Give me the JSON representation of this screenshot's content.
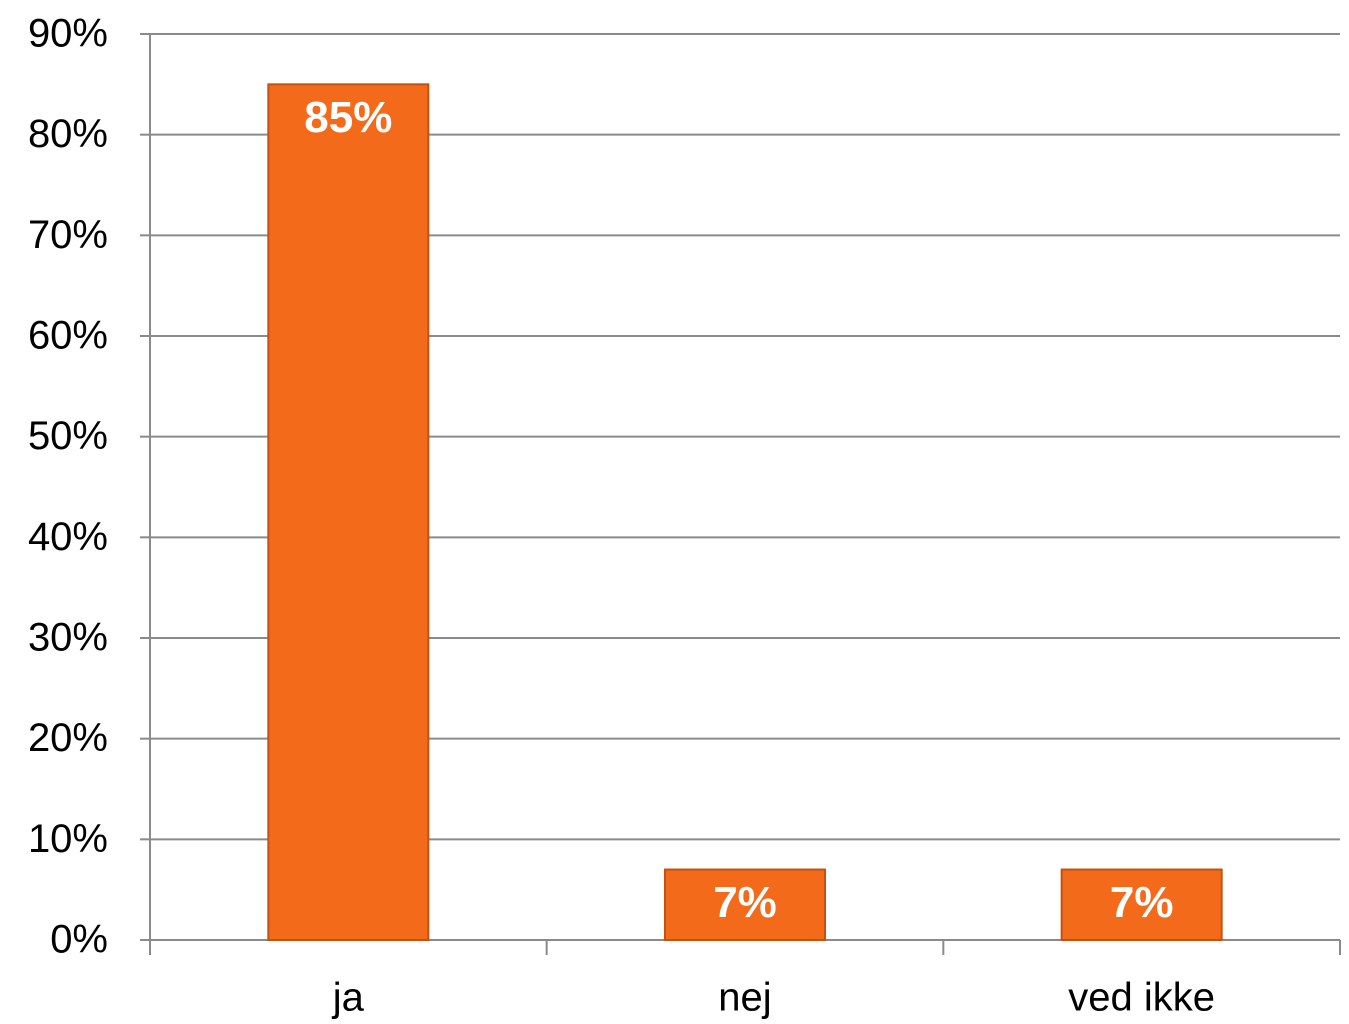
{
  "chart_data": {
    "type": "bar",
    "categories": [
      "ja",
      "nej",
      "ved ikke"
    ],
    "values": [
      85,
      7,
      7
    ],
    "value_labels": [
      "85%",
      "7%",
      "7%"
    ],
    "color": "#f46a1b",
    "ylim": [
      0,
      90
    ],
    "yticks": [
      {
        "value": 0,
        "label": "0%"
      },
      {
        "value": 10,
        "label": "10%"
      },
      {
        "value": 20,
        "label": "20%"
      },
      {
        "value": 30,
        "label": "30%"
      },
      {
        "value": 40,
        "label": "40%"
      },
      {
        "value": 50,
        "label": "50%"
      },
      {
        "value": 60,
        "label": "60%"
      },
      {
        "value": 70,
        "label": "70%"
      },
      {
        "value": 80,
        "label": "80%"
      },
      {
        "value": 90,
        "label": "90%"
      }
    ],
    "grid": true
  }
}
